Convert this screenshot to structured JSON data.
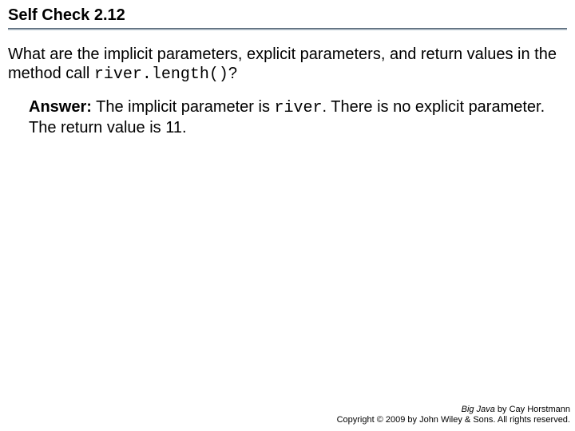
{
  "header": {
    "title": "Self Check 2.12"
  },
  "question": {
    "part1": "What are the implicit parameters, explicit parameters, and return values in the method call ",
    "code": "river.length()",
    "part2": "?"
  },
  "answer": {
    "label": "Answer:",
    "part1": " The implicit parameter is ",
    "code": "river",
    "part2": ". There is no explicit parameter. The return value is 11."
  },
  "footer": {
    "book_title": "Big Java",
    "by_line": " by Cay Horstmann",
    "copyright": "Copyright © 2009 by John Wiley & Sons. All rights reserved."
  },
  "colors": {
    "text": "#000000",
    "divider_top": "#5a6a7a",
    "divider_bottom": "#c5d0d8",
    "background": "#ffffff"
  },
  "typography": {
    "title_fontsize": 20,
    "body_fontsize": 20,
    "footer_fontsize": 11,
    "code_font": "Courier New"
  }
}
